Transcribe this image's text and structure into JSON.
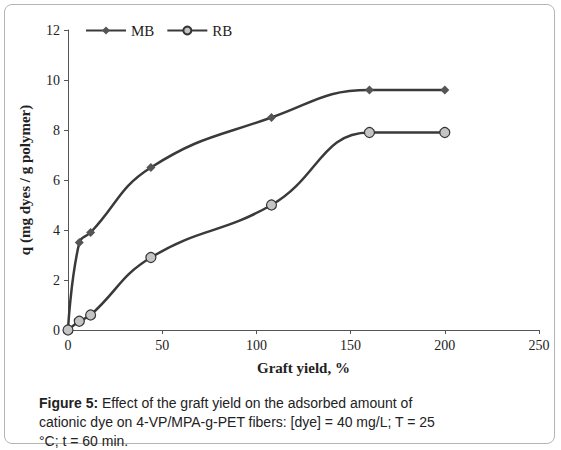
{
  "chart_data": {
    "type": "line",
    "title": "Figure 5: Effect of the graft yield on the adsorbed amount of cationic dye on 4-VP/MPA-g-PET fibers: [dye] = 40 mg/L; T = 25 °C; t = 60 min.",
    "x_label": "Graft yield, %",
    "y_label": "q (mg dyes / g polymer)",
    "x": [
      0,
      6,
      12,
      44,
      108,
      160,
      200
    ],
    "series": [
      {
        "name": "MB",
        "color": "#555555",
        "marker": "diamond",
        "values": [
          0,
          3.5,
          3.9,
          6.5,
          8.5,
          9.6,
          9.6
        ]
      },
      {
        "name": "RB",
        "color": "#333333",
        "marker": "circle",
        "values": [
          0,
          0.35,
          0.6,
          2.9,
          5.0,
          7.9,
          7.9
        ]
      }
    ],
    "xlim": [
      0,
      250
    ],
    "xticks": [
      0,
      50,
      100,
      150,
      200,
      250
    ],
    "ylim": [
      0,
      12
    ],
    "yticks": [
      0,
      2,
      4,
      6,
      8,
      10,
      12
    ],
    "grid": false,
    "legend": "upper left"
  }
}
